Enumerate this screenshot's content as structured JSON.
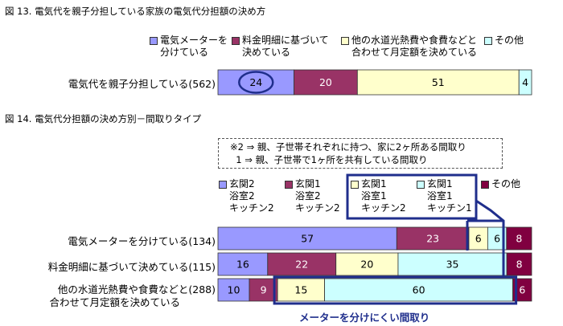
{
  "fig13": {
    "title": "図 13. 電気代を親子分担している家族の電気代分担額の決め方",
    "legend": [
      {
        "line1": "電気メーターを",
        "line2": "分けている",
        "color": "#9999ff"
      },
      {
        "line1": "料金明細に基づいて",
        "line2": "決めている",
        "color": "#993366"
      },
      {
        "line1": "他の水道光熱費や食費などと",
        "line2": "合わせて月定額を決めている",
        "color": "#ffffcc"
      },
      {
        "line1": "その他",
        "line2": "",
        "color": "#ccffff"
      }
    ]
  },
  "fig14": {
    "title": "図 14. 電気代分担額の決め方別－間取りタイプ",
    "note_line1": "※2 ⇒ 親、子世帯それぞれに持つ、家に2ヶ所ある間取り",
    "note_line2": "  1 ⇒ 親、子世帯で1ヶ所を共有している間取り",
    "legend": [
      {
        "line1": "玄関2",
        "line2": "浴室2",
        "line3": "キッチン2",
        "color": "#9999ff"
      },
      {
        "line1": "玄関1",
        "line2": "浴室2",
        "line3": "キッチン2",
        "color": "#993366"
      },
      {
        "line1": "玄関1",
        "line2": "浴室1",
        "line3": "キッチン2",
        "color": "#ffffcc"
      },
      {
        "line1": "玄関1",
        "line2": "浴室1",
        "line3": "キッチン1",
        "color": "#ccffff"
      },
      {
        "line1": "その他",
        "line2": "",
        "line3": "",
        "color": "#800040"
      }
    ],
    "highlight_label": "メーターを分けにくい間取り",
    "bar_labels": [
      {
        "line1": "電気メーターを分けている(134)",
        "line2": ""
      },
      {
        "line1": "料金明細に基づいて決めている(115)",
        "line2": ""
      },
      {
        "line1": "他の水道光熱費や食費などと(288)",
        "line2": "合わせて月定額を決めている"
      }
    ]
  },
  "chart_data": [
    {
      "type": "bar",
      "stacked": true,
      "orientation": "horizontal",
      "title": "図 13. 電気代を親子分担している家族の電気代分担額の決め方",
      "categories": [
        "電気代を親子分担している(562)"
      ],
      "series": [
        {
          "name": "電気メーターを分けている",
          "values": [
            24
          ],
          "color": "#9999ff"
        },
        {
          "name": "料金明細に基づいて決めている",
          "values": [
            20
          ],
          "color": "#993366"
        },
        {
          "name": "他の水道光熱費や食費などと合わせて月定額を決めている",
          "values": [
            51
          ],
          "color": "#ffffcc"
        },
        {
          "name": "その他",
          "values": [
            4
          ],
          "color": "#ccffff"
        }
      ],
      "legend": "top",
      "circled_value": 24
    },
    {
      "type": "bar",
      "stacked": true,
      "orientation": "horizontal",
      "title": "図 14. 電気代分担額の決め方別－間取りタイプ",
      "categories": [
        "電気メーターを分けている(134)",
        "料金明細に基づいて決めている(115)",
        "他の水道光熱費や食費などと(288) 合わせて月定額を決めている"
      ],
      "series": [
        {
          "name": "玄関2 浴室2 キッチン2",
          "values": [
            57,
            16,
            10
          ],
          "color": "#9999ff"
        },
        {
          "name": "玄関1 浴室2 キッチン2",
          "values": [
            23,
            22,
            9
          ],
          "color": "#993366"
        },
        {
          "name": "玄関1 浴室1 キッチン2",
          "values": [
            6,
            20,
            15
          ],
          "color": "#ffffcc"
        },
        {
          "name": "玄関1 浴室1 キッチン1",
          "values": [
            6,
            35,
            60
          ],
          "color": "#ccffff"
        },
        {
          "name": "その他",
          "values": [
            8,
            8,
            6
          ],
          "color": "#800040"
        }
      ],
      "legend": "top",
      "highlight": {
        "series": [
          "玄関1 浴室1 キッチン2",
          "玄関1 浴室1 キッチン1"
        ],
        "label": "メーターを分けにくい間取り"
      }
    }
  ]
}
